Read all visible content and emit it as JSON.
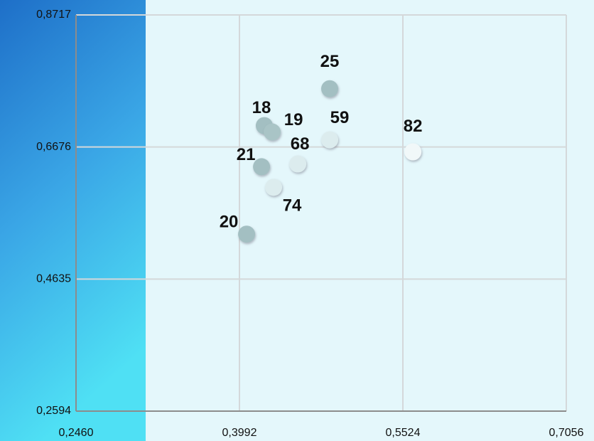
{
  "chart_data": {
    "type": "scatter",
    "x": [
      0.4838,
      0.4225,
      0.4299,
      0.4838,
      0.5618,
      0.4539,
      0.4199,
      0.4312,
      0.4059
    ],
    "y": [
      0.7577,
      0.7006,
      0.6908,
      0.6787,
      0.6601,
      0.6414,
      0.6371,
      0.6053,
      0.5329
    ],
    "point_labels": [
      "25",
      "18",
      "19",
      "59",
      "82",
      "68",
      "21",
      "74",
      "20"
    ],
    "point_colors": [
      "#a3bfc2",
      "#a3bfc2",
      "#a9c4c6",
      "#dcecee",
      "#f1f8f9",
      "#dcecee",
      "#a3bfc2",
      "#dcecee",
      "#a3bfc2"
    ],
    "xlim": [
      0.246,
      0.7056
    ],
    "xticks": [
      {
        "value": 0.246,
        "label": "0,2460"
      },
      {
        "value": 0.3992,
        "label": "0,3992"
      },
      {
        "value": 0.5524,
        "label": "0,5524"
      },
      {
        "value": 0.7056,
        "label": "0,7056"
      }
    ],
    "ylim": [
      0.2594,
      0.8717
    ],
    "yticks": [
      {
        "value": 0.2594,
        "label": "0,2594"
      },
      {
        "value": 0.4635,
        "label": "0,4635"
      },
      {
        "value": 0.6676,
        "label": "0,6676"
      },
      {
        "value": 0.8717,
        "label": "0,8717"
      }
    ],
    "grid": true
  }
}
